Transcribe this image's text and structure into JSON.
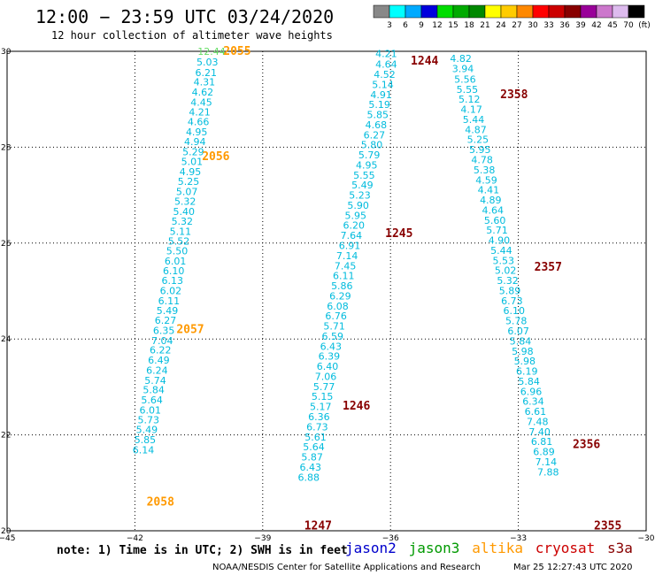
{
  "title": "12:00 − 23:59 UTC 03/24/2020",
  "subtitle": "12 hour collection of altimeter wave heights",
  "colorbar": {
    "labels": [
      "3",
      "6",
      "9",
      "12",
      "15",
      "18",
      "21",
      "24",
      "27",
      "30",
      "33",
      "36",
      "39",
      "42",
      "45",
      "70",
      "(ft)"
    ],
    "colors": [
      "#888888",
      "#00ffff",
      "#00aaff",
      "#0000dd",
      "#00dd00",
      "#00aa00",
      "#008800",
      "#ffff00",
      "#ffcc00",
      "#ff8800",
      "#ff0000",
      "#cc0000",
      "#880000",
      "#990099",
      "#cc77cc",
      "#ddbbee",
      "#000000"
    ]
  },
  "note": "note: 1) Time is in UTC; 2) SWH is in feet",
  "legend": [
    {
      "name": "jason2",
      "color": "#0000cc"
    },
    {
      "name": "jason3",
      "color": "#009900"
    },
    {
      "name": "altika",
      "color": "#ff9900"
    },
    {
      "name": "cryosat",
      "color": "#cc0000"
    },
    {
      "name": "s3a",
      "color": "#880000"
    }
  ],
  "footer": {
    "left": "NOAA/NESDIS Center for Satellite Applications and Research",
    "right": "Mar 25 12:27:43 UTC 2020"
  },
  "chart_data": {
    "type": "scatter",
    "title": "12:00 − 23:59 UTC 03/24/2020",
    "xlim": [
      -45,
      -30
    ],
    "ylim": [
      20,
      30
    ],
    "xticks": [
      -45,
      -42,
      -39,
      -36,
      -33,
      -30
    ],
    "yticks": [
      20,
      22,
      24,
      26,
      28,
      30
    ],
    "xticklabels": [
      "−45",
      "−42",
      "−39",
      "−36",
      "−33",
      "−30"
    ],
    "grid": true,
    "value_color": "#00bbdd",
    "tracks": [
      {
        "satellite": "altika",
        "time_color": "#ff9900",
        "times": [
          {
            "label": "2055",
            "x": -39.6,
            "y": 30.0
          },
          {
            "label": "2056",
            "x": -40.1,
            "y": 27.8
          },
          {
            "label": "2057",
            "x": -40.7,
            "y": 24.2
          },
          {
            "label": "2058",
            "x": -41.4,
            "y": 20.6
          }
        ],
        "points": [
          {
            "x": -40.2,
            "y": 30.0,
            "v": "12.44",
            "c": "#66dd66"
          },
          {
            "x": -40.3,
            "y": 29.78,
            "v": "5.03"
          },
          {
            "x": -40.33,
            "y": 29.56,
            "v": "6.21"
          },
          {
            "x": -40.37,
            "y": 29.36,
            "v": "4.31"
          },
          {
            "x": -40.41,
            "y": 29.15,
            "v": "4.62"
          },
          {
            "x": -40.44,
            "y": 28.94,
            "v": "4.45"
          },
          {
            "x": -40.48,
            "y": 28.74,
            "v": "4.21"
          },
          {
            "x": -40.51,
            "y": 28.53,
            "v": "4.66"
          },
          {
            "x": -40.55,
            "y": 28.32,
            "v": "4.95"
          },
          {
            "x": -40.59,
            "y": 28.12,
            "v": "4.94"
          },
          {
            "x": -40.63,
            "y": 27.91,
            "v": "5.29"
          },
          {
            "x": -40.66,
            "y": 27.7,
            "v": "5.01"
          },
          {
            "x": -40.7,
            "y": 27.49,
            "v": "4.95"
          },
          {
            "x": -40.74,
            "y": 27.29,
            "v": "5.25"
          },
          {
            "x": -40.78,
            "y": 27.08,
            "v": "5.07"
          },
          {
            "x": -40.82,
            "y": 26.87,
            "v": "5.32"
          },
          {
            "x": -40.85,
            "y": 26.66,
            "v": "5.40"
          },
          {
            "x": -40.89,
            "y": 26.46,
            "v": "5.32"
          },
          {
            "x": -40.93,
            "y": 26.25,
            "v": "5.11"
          },
          {
            "x": -40.97,
            "y": 26.04,
            "v": "5.52"
          },
          {
            "x": -41.01,
            "y": 25.84,
            "v": "5.50"
          },
          {
            "x": -41.05,
            "y": 25.63,
            "v": "6.01"
          },
          {
            "x": -41.09,
            "y": 25.42,
            "v": "6.10"
          },
          {
            "x": -41.12,
            "y": 25.22,
            "v": "6.13"
          },
          {
            "x": -41.16,
            "y": 25.01,
            "v": "6.02"
          },
          {
            "x": -41.2,
            "y": 24.8,
            "v": "6.11"
          },
          {
            "x": -41.24,
            "y": 24.59,
            "v": "5.49"
          },
          {
            "x": -41.28,
            "y": 24.39,
            "v": "6.27"
          },
          {
            "x": -41.32,
            "y": 24.18,
            "v": "6.35"
          },
          {
            "x": -41.36,
            "y": 23.97,
            "v": "7.04"
          },
          {
            "x": -41.4,
            "y": 23.77,
            "v": "6.22"
          },
          {
            "x": -41.44,
            "y": 23.56,
            "v": "6.49"
          },
          {
            "x": -41.48,
            "y": 23.35,
            "v": "6.24"
          },
          {
            "x": -41.52,
            "y": 23.14,
            "v": "5.74"
          },
          {
            "x": -41.56,
            "y": 22.94,
            "v": "5.84"
          },
          {
            "x": -41.6,
            "y": 22.73,
            "v": "5.64"
          },
          {
            "x": -41.64,
            "y": 22.52,
            "v": "6.01"
          },
          {
            "x": -41.68,
            "y": 22.32,
            "v": "5.73"
          },
          {
            "x": -41.72,
            "y": 22.11,
            "v": "5.49"
          },
          {
            "x": -41.76,
            "y": 21.9,
            "v": "5.85"
          },
          {
            "x": -41.8,
            "y": 21.69,
            "v": "6.14"
          }
        ]
      },
      {
        "satellite": "s3a",
        "time_color": "#880000",
        "times": [
          {
            "label": "1244",
            "x": -35.2,
            "y": 29.8
          },
          {
            "label": "1245",
            "x": -35.8,
            "y": 26.2
          },
          {
            "label": "1246",
            "x": -36.8,
            "y": 22.6
          },
          {
            "label": "1247",
            "x": -37.7,
            "y": 20.1
          }
        ],
        "points": [
          {
            "x": -36.1,
            "y": 29.95,
            "v": "4.21"
          },
          {
            "x": -36.1,
            "y": 29.73,
            "v": "4.64"
          },
          {
            "x": -36.14,
            "y": 29.52,
            "v": "4.52"
          },
          {
            "x": -36.18,
            "y": 29.31,
            "v": "5.14"
          },
          {
            "x": -36.22,
            "y": 29.1,
            "v": "4.91"
          },
          {
            "x": -36.26,
            "y": 28.89,
            "v": "5.19"
          },
          {
            "x": -36.3,
            "y": 28.68,
            "v": "5.85"
          },
          {
            "x": -36.34,
            "y": 28.47,
            "v": "4.68"
          },
          {
            "x": -36.38,
            "y": 28.26,
            "v": "6.27"
          },
          {
            "x": -36.44,
            "y": 28.05,
            "v": "5.80"
          },
          {
            "x": -36.5,
            "y": 27.84,
            "v": "5.79"
          },
          {
            "x": -36.56,
            "y": 27.63,
            "v": "4.95"
          },
          {
            "x": -36.62,
            "y": 27.42,
            "v": "5.55"
          },
          {
            "x": -36.66,
            "y": 27.21,
            "v": "5.49"
          },
          {
            "x": -36.72,
            "y": 27.0,
            "v": "5.23"
          },
          {
            "x": -36.76,
            "y": 26.79,
            "v": "5.90"
          },
          {
            "x": -36.82,
            "y": 26.58,
            "v": "5.95"
          },
          {
            "x": -36.86,
            "y": 26.37,
            "v": "6.20"
          },
          {
            "x": -36.92,
            "y": 26.16,
            "v": "7.64"
          },
          {
            "x": -36.96,
            "y": 25.95,
            "v": "6.91"
          },
          {
            "x": -37.02,
            "y": 25.74,
            "v": "7.14"
          },
          {
            "x": -37.06,
            "y": 25.53,
            "v": "7.45"
          },
          {
            "x": -37.1,
            "y": 25.32,
            "v": "6.11"
          },
          {
            "x": -37.14,
            "y": 25.11,
            "v": "5.86"
          },
          {
            "x": -37.18,
            "y": 24.9,
            "v": "6.29"
          },
          {
            "x": -37.24,
            "y": 24.69,
            "v": "6.08"
          },
          {
            "x": -37.28,
            "y": 24.48,
            "v": "6.76"
          },
          {
            "x": -37.32,
            "y": 24.27,
            "v": "5.71"
          },
          {
            "x": -37.36,
            "y": 24.06,
            "v": "6.59"
          },
          {
            "x": -37.4,
            "y": 23.85,
            "v": "6.43"
          },
          {
            "x": -37.44,
            "y": 23.64,
            "v": "6.39"
          },
          {
            "x": -37.48,
            "y": 23.43,
            "v": "6.40"
          },
          {
            "x": -37.52,
            "y": 23.22,
            "v": "7.06"
          },
          {
            "x": -37.56,
            "y": 23.01,
            "v": "5.77"
          },
          {
            "x": -37.6,
            "y": 22.8,
            "v": "5.15"
          },
          {
            "x": -37.64,
            "y": 22.59,
            "v": "5.17"
          },
          {
            "x": -37.68,
            "y": 22.38,
            "v": "6.36"
          },
          {
            "x": -37.72,
            "y": 22.17,
            "v": "6.73"
          },
          {
            "x": -37.76,
            "y": 21.96,
            "v": "5.61"
          },
          {
            "x": -37.8,
            "y": 21.75,
            "v": "5.64"
          },
          {
            "x": -37.84,
            "y": 21.54,
            "v": "5.87"
          },
          {
            "x": -37.88,
            "y": 21.33,
            "v": "6.43"
          },
          {
            "x": -37.92,
            "y": 21.12,
            "v": "6.88"
          }
        ]
      },
      {
        "satellite": "s3a",
        "time_color": "#880000",
        "times": [
          {
            "label": "2358",
            "x": -33.1,
            "y": 29.1
          },
          {
            "label": "2357",
            "x": -32.3,
            "y": 25.5
          },
          {
            "label": "2356",
            "x": -31.4,
            "y": 21.8
          },
          {
            "label": "2355",
            "x": -30.9,
            "y": 20.1
          }
        ],
        "points": [
          {
            "x": -34.35,
            "y": 29.85,
            "v": "4.82"
          },
          {
            "x": -34.3,
            "y": 29.64,
            "v": "3.94"
          },
          {
            "x": -34.25,
            "y": 29.42,
            "v": "5.56"
          },
          {
            "x": -34.2,
            "y": 29.21,
            "v": "5.55"
          },
          {
            "x": -34.15,
            "y": 29.0,
            "v": "5.12"
          },
          {
            "x": -34.1,
            "y": 28.79,
            "v": "4.17"
          },
          {
            "x": -34.05,
            "y": 28.58,
            "v": "5.44"
          },
          {
            "x": -34.0,
            "y": 28.37,
            "v": "4.87"
          },
          {
            "x": -33.95,
            "y": 28.16,
            "v": "5.25"
          },
          {
            "x": -33.9,
            "y": 27.95,
            "v": "5.95"
          },
          {
            "x": -33.85,
            "y": 27.74,
            "v": "4.78"
          },
          {
            "x": -33.8,
            "y": 27.53,
            "v": "5.38"
          },
          {
            "x": -33.75,
            "y": 27.32,
            "v": "4.59"
          },
          {
            "x": -33.7,
            "y": 27.11,
            "v": "4.41"
          },
          {
            "x": -33.65,
            "y": 26.9,
            "v": "4.89"
          },
          {
            "x": -33.6,
            "y": 26.69,
            "v": "4.64"
          },
          {
            "x": -33.55,
            "y": 26.48,
            "v": "5.60"
          },
          {
            "x": -33.5,
            "y": 26.27,
            "v": "5.71"
          },
          {
            "x": -33.45,
            "y": 26.06,
            "v": "4.90"
          },
          {
            "x": -33.4,
            "y": 25.85,
            "v": "5.44"
          },
          {
            "x": -33.35,
            "y": 25.64,
            "v": "5.53"
          },
          {
            "x": -33.3,
            "y": 25.43,
            "v": "5.02"
          },
          {
            "x": -33.25,
            "y": 25.22,
            "v": "5.32"
          },
          {
            "x": -33.2,
            "y": 25.01,
            "v": "5.89"
          },
          {
            "x": -33.15,
            "y": 24.8,
            "v": "6.73"
          },
          {
            "x": -33.1,
            "y": 24.59,
            "v": "6.10"
          },
          {
            "x": -33.05,
            "y": 24.38,
            "v": "5.78"
          },
          {
            "x": -33.0,
            "y": 24.17,
            "v": "6.07"
          },
          {
            "x": -32.95,
            "y": 23.96,
            "v": "5.84"
          },
          {
            "x": -32.9,
            "y": 23.75,
            "v": "5.98"
          },
          {
            "x": -32.85,
            "y": 23.54,
            "v": "5.98"
          },
          {
            "x": -32.8,
            "y": 23.33,
            "v": "6.19"
          },
          {
            "x": -32.75,
            "y": 23.12,
            "v": "5.84"
          },
          {
            "x": -32.7,
            "y": 22.91,
            "v": "6.96"
          },
          {
            "x": -32.65,
            "y": 22.7,
            "v": "6.34"
          },
          {
            "x": -32.6,
            "y": 22.49,
            "v": "6.61"
          },
          {
            "x": -32.55,
            "y": 22.28,
            "v": "7.48"
          },
          {
            "x": -32.5,
            "y": 22.07,
            "v": "7.40"
          },
          {
            "x": -32.45,
            "y": 21.86,
            "v": "6.81"
          },
          {
            "x": -32.4,
            "y": 21.65,
            "v": "6.89"
          },
          {
            "x": -32.35,
            "y": 21.44,
            "v": "7.14"
          },
          {
            "x": -32.3,
            "y": 21.23,
            "v": "7.88"
          }
        ]
      }
    ]
  }
}
